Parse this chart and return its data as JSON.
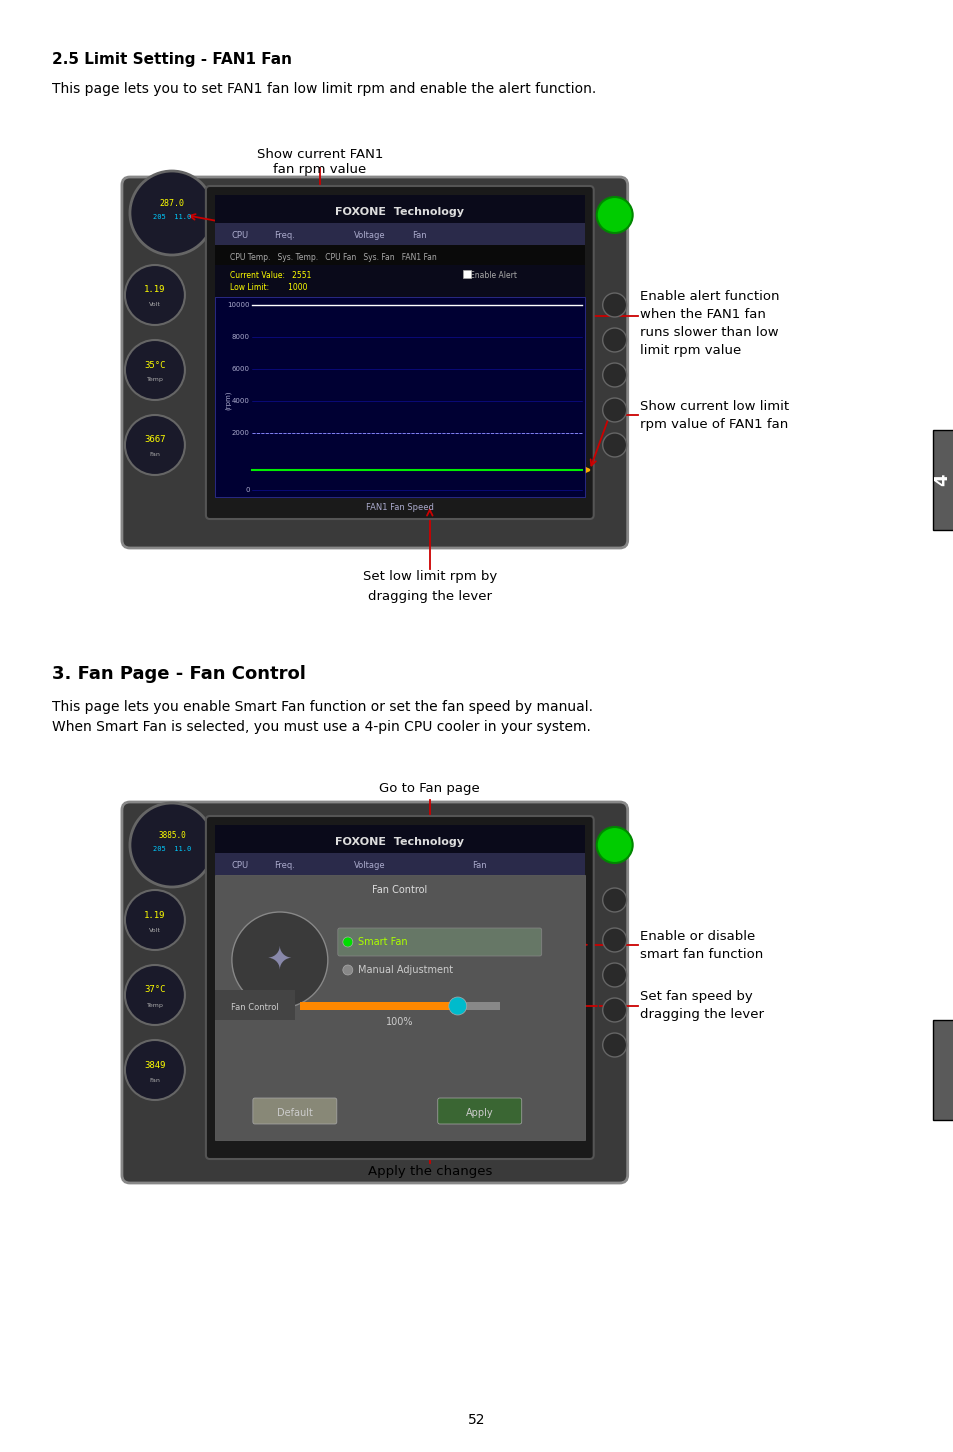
{
  "bg_color": "#ffffff",
  "section1_heading": "2.5 Limit Setting - FAN1 Fan",
  "section1_body1": "This page lets you to set FAN1 fan low limit rpm and enable the alert function.",
  "section1_ann_topleft": "Show current FAN1\nfan rpm value",
  "section1_ann_tr1": "Enable alert function",
  "section1_ann_tr2": "when the FAN1 fan",
  "section1_ann_tr3": "runs slower than low",
  "section1_ann_tr4": "limit rpm value",
  "section1_ann_mr1": "Show current low limit",
  "section1_ann_mr2": "rpm value of FAN1 fan",
  "section1_ann_bot1": "Set low limit rpm by",
  "section1_ann_bot2": "dragging the lever",
  "section2_heading": "3. Fan Page - Fan Control",
  "section2_body1": "This page lets you enable Smart Fan function or set the fan speed by manual.",
  "section2_body2": "When Smart Fan is selected, you must use a 4-pin CPU cooler in your system.",
  "section2_ann_top": "Go to Fan page",
  "section2_ann_r1": "Enable or disable",
  "section2_ann_r2": "smart fan function",
  "section2_ann_r3": "Set fan speed by",
  "section2_ann_r4": "dragging the lever",
  "section2_ann_bot": "Apply the changes",
  "page_number": "52",
  "arrow_color": "#cc0000",
  "sidebar_color": "#5a5a5a"
}
